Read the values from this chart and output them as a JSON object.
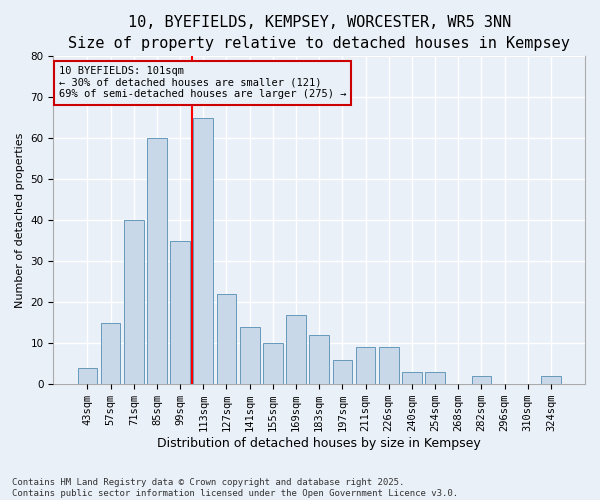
{
  "title1": "10, BYEFIELDS, KEMPSEY, WORCESTER, WR5 3NN",
  "title2": "Size of property relative to detached houses in Kempsey",
  "xlabel": "Distribution of detached houses by size in Kempsey",
  "ylabel": "Number of detached properties",
  "footnote": "Contains HM Land Registry data © Crown copyright and database right 2025.\nContains public sector information licensed under the Open Government Licence v3.0.",
  "categories": [
    "43sqm",
    "57sqm",
    "71sqm",
    "85sqm",
    "99sqm",
    "113sqm",
    "127sqm",
    "141sqm",
    "155sqm",
    "169sqm",
    "183sqm",
    "197sqm",
    "211sqm",
    "226sqm",
    "240sqm",
    "254sqm",
    "268sqm",
    "282sqm",
    "296sqm",
    "310sqm",
    "324sqm"
  ],
  "values": [
    4,
    15,
    40,
    60,
    35,
    65,
    22,
    14,
    10,
    17,
    12,
    6,
    9,
    9,
    3,
    3,
    0,
    2,
    0,
    0,
    2
  ],
  "bar_color": "#c8d8e8",
  "bar_edge_color": "#6699bb",
  "bg_color": "#eaf0f8",
  "grid_color": "#ffffff",
  "annotation_box_color": "#cc0000",
  "property_label": "10 BYEFIELDS: 101sqm",
  "annotation_line1": "← 30% of detached houses are smaller (121)",
  "annotation_line2": "69% of semi-detached houses are larger (275) →",
  "ylim": [
    0,
    80
  ],
  "yticks": [
    0,
    10,
    20,
    30,
    40,
    50,
    60,
    70,
    80
  ],
  "red_line_index": 4.5,
  "title1_fontsize": 11,
  "title2_fontsize": 9,
  "ylabel_fontsize": 8,
  "xlabel_fontsize": 9,
  "tick_fontsize": 7.5,
  "footnote_fontsize": 6.5
}
